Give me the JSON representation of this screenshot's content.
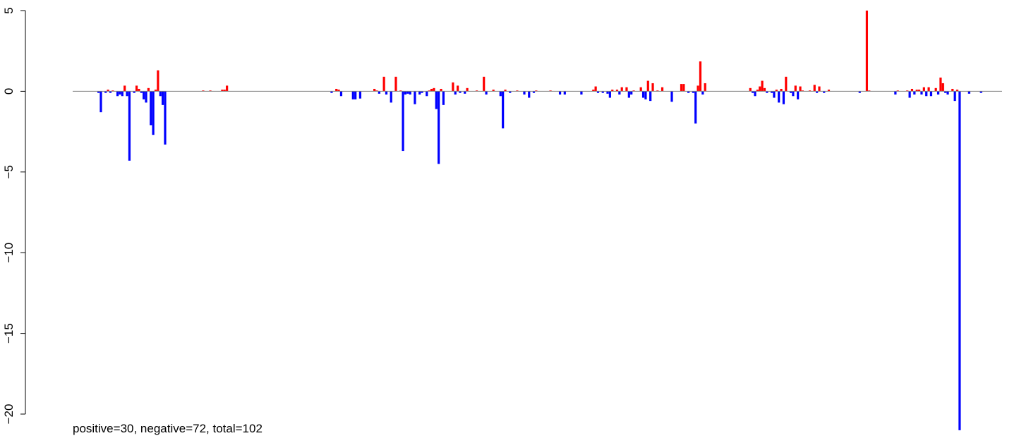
{
  "chart_data": {
    "type": "bar",
    "title": "",
    "xlabel": "",
    "ylabel": "",
    "annotation": "positive=30, negative=72, total=102",
    "ylim": [
      -21,
      5
    ],
    "yticks": [
      5,
      0,
      -5,
      -10,
      -15,
      -20
    ],
    "ytick_labels": [
      "5",
      "0",
      "−5",
      "−10",
      "−15",
      "−20"
    ],
    "baseline": 0,
    "colors": {
      "positive": "#ff0000",
      "negative": "#0000ff",
      "baseline": "#7f7f7f"
    },
    "series": [
      {
        "name": "",
        "values": [
          -0.1,
          -1.3,
          0,
          -0.1,
          0.1,
          -0.1,
          0.05,
          0,
          -0.3,
          -0.2,
          -0.3,
          0.35,
          -0.3,
          -4.3,
          0,
          -0.1,
          0.35,
          0.15,
          -0.1,
          -0.5,
          -0.7,
          0.2,
          -2.1,
          -2.7,
          0.1,
          1.3,
          -0.3,
          -0.85,
          -3.3,
          0,
          0,
          0,
          0,
          0,
          0,
          0,
          0,
          0,
          0,
          0,
          0,
          0,
          0,
          0,
          0.05,
          0,
          0,
          0.05,
          0,
          0,
          0,
          0,
          0.1,
          0.1,
          0.35,
          0,
          0,
          0,
          0,
          0,
          0,
          0,
          0,
          0,
          0,
          0,
          0,
          0,
          0,
          0,
          0,
          0,
          0,
          0,
          0,
          0,
          0,
          0,
          0,
          0,
          0,
          0,
          0,
          0,
          0,
          0,
          0,
          0,
          0,
          0,
          0,
          0,
          0,
          0,
          0,
          0,
          0,
          0,
          -0.1,
          0,
          0.15,
          0.1,
          -0.3,
          0,
          0,
          0,
          0,
          -0.5,
          -0.5,
          0,
          -0.45,
          0,
          0,
          0,
          0,
          0,
          0.15,
          0.05,
          -0.15,
          0,
          0.9,
          -0.2,
          0,
          -0.7,
          0,
          0.9,
          0,
          0.05,
          -3.7,
          -0.2,
          -0.15,
          -0.2,
          0,
          -0.8,
          0,
          -0.2,
          -0.1,
          0,
          -0.3,
          0.05,
          0.15,
          0.2,
          -1.1,
          -4.5,
          0.15,
          -0.85,
          0,
          0,
          0,
          0.55,
          -0.2,
          0.35,
          -0.1,
          0,
          -0.15,
          0.2,
          0,
          0,
          0,
          0.05,
          0,
          0,
          0.9,
          -0.2,
          0,
          0,
          0.1,
          0,
          0,
          -0.3,
          -2.3,
          0.1,
          0,
          -0.1,
          0,
          0,
          0.05,
          0,
          0,
          -0.2,
          0,
          -0.4,
          0,
          -0.1,
          0.05,
          0,
          0,
          0,
          0,
          0,
          0.05,
          0,
          0,
          0,
          -0.2,
          0,
          -0.2,
          0,
          0,
          0,
          0,
          0,
          0,
          -0.2,
          0,
          0,
          0,
          0,
          0.1,
          0.3,
          -0.1,
          0,
          -0.1,
          0,
          -0.15,
          -0.4,
          0.1,
          0,
          0.1,
          -0.2,
          0.25,
          0,
          0.25,
          -0.4,
          -0.2,
          0.05,
          0,
          0,
          0.25,
          -0.4,
          -0.5,
          0.65,
          -0.6,
          0.5,
          0,
          0.05,
          0,
          0.25,
          0,
          0,
          0,
          -0.65,
          0,
          0,
          0,
          0.45,
          0.45,
          0,
          -0.1,
          0,
          -0.1,
          -2.0,
          0.35,
          1.85,
          -0.2,
          0.5,
          0,
          0,
          0,
          0,
          0,
          0,
          0,
          0,
          0,
          0,
          0,
          0,
          0,
          0,
          0,
          0,
          0,
          0,
          0.2,
          -0.1,
          -0.3,
          0.1,
          0.3,
          0.65,
          0.2,
          -0.1,
          0,
          -0.1,
          -0.4,
          0.1,
          -0.7,
          0.15,
          -0.8,
          0.9,
          0,
          -0.1,
          -0.3,
          0.35,
          -0.5,
          0.3,
          0.05,
          0,
          0,
          0.05,
          0,
          0.4,
          -0.1,
          0.3,
          0,
          -0.1,
          0,
          0.1,
          0,
          0,
          0,
          0,
          0,
          0,
          0,
          0,
          0,
          0,
          0,
          0,
          -0.1,
          0,
          0,
          5.0,
          0.05,
          0,
          0,
          0,
          0,
          0,
          0,
          0,
          0,
          0,
          0,
          -0.2,
          0.05,
          0,
          0,
          0,
          0.05,
          -0.4,
          0.15,
          -0.2,
          0.1,
          0.1,
          -0.2,
          0.25,
          -0.3,
          0.25,
          -0.3,
          0,
          0.2,
          -0.2,
          0.85,
          0.5,
          -0.1,
          -0.2,
          0,
          0.15,
          -0.6,
          0.1,
          -21.0,
          0,
          0,
          0,
          -0.15,
          0,
          0,
          0,
          0,
          -0.1
        ]
      }
    ]
  }
}
